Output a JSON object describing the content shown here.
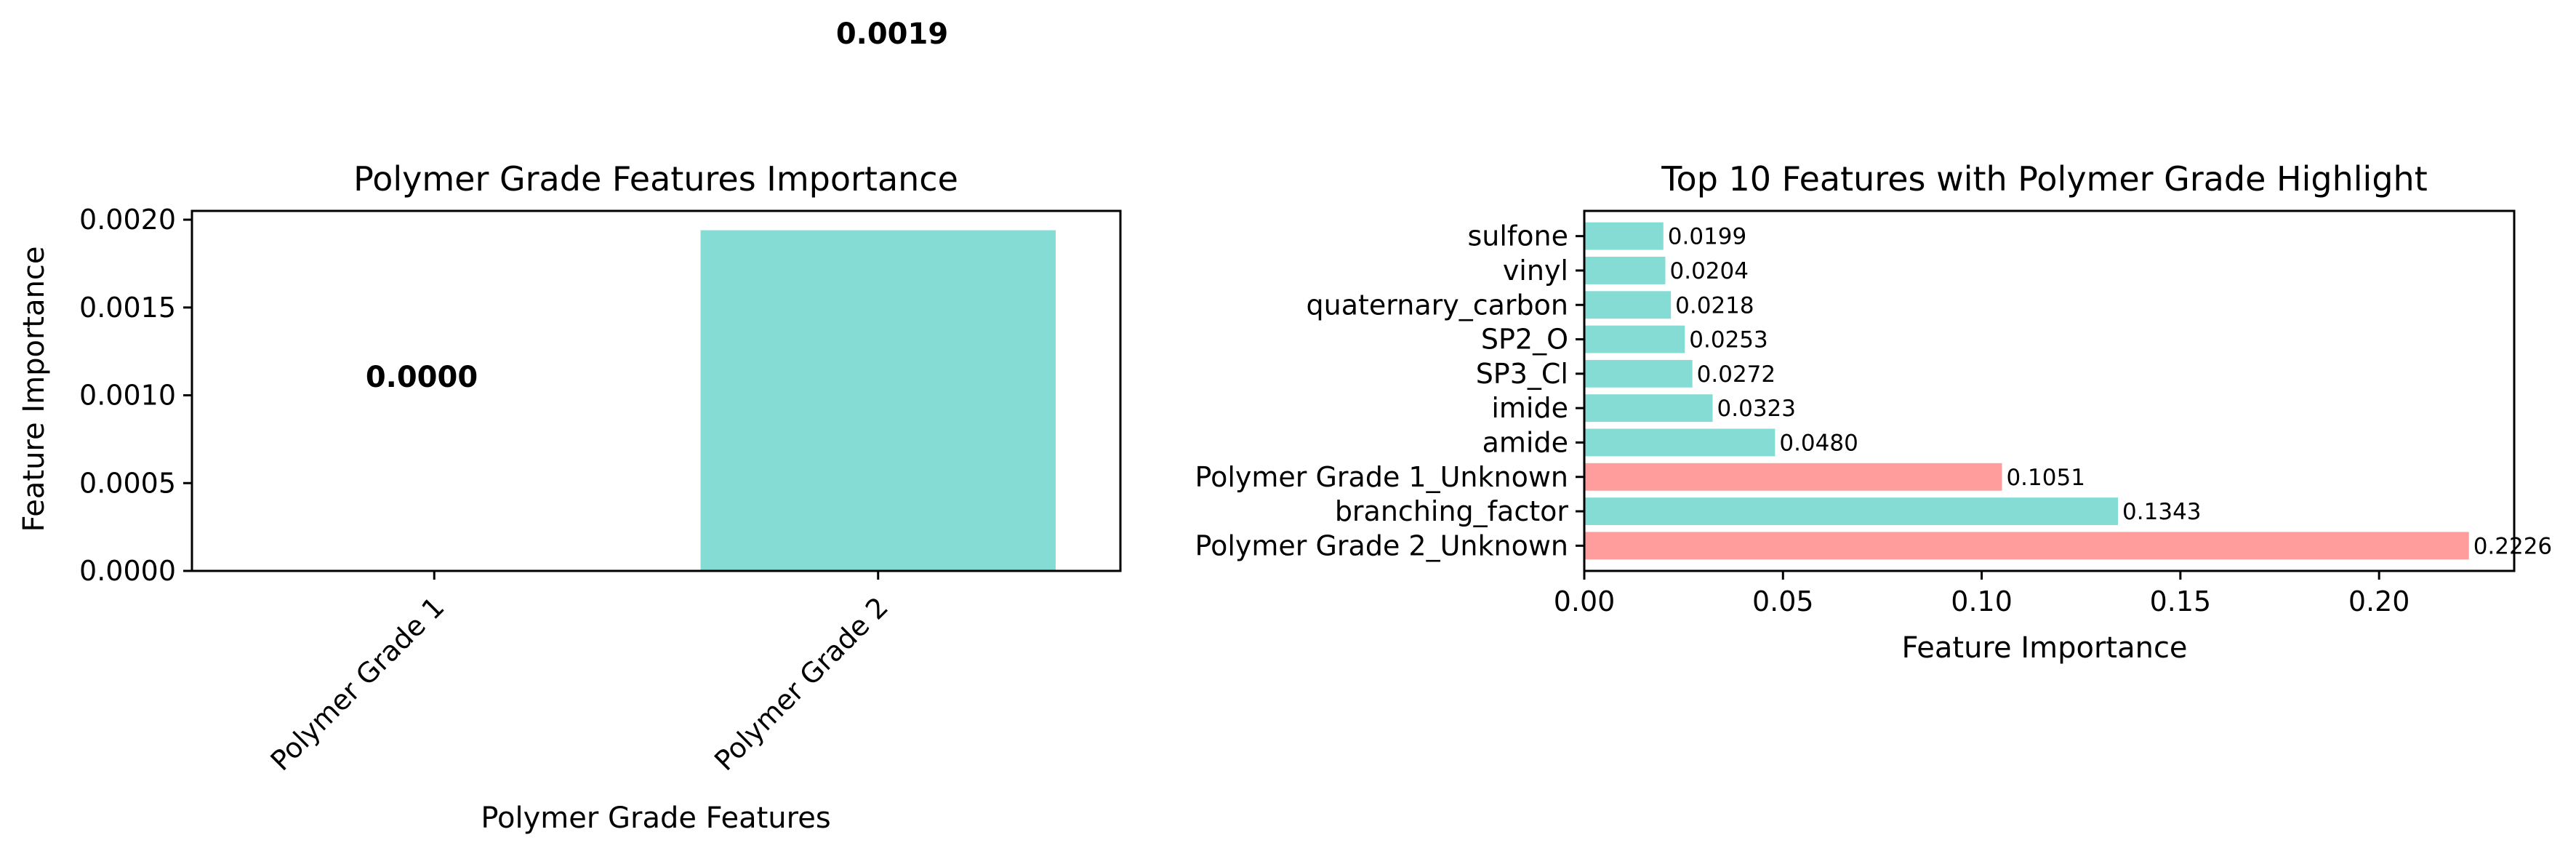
{
  "colors": {
    "normal": "#84dcd5",
    "highlight": "#ff9c9c",
    "axis": "#000000"
  },
  "chart_data": [
    {
      "type": "bar",
      "title": "Polymer Grade Features Importance",
      "xlabel": "Polymer Grade Features",
      "ylabel": "Feature Importance",
      "categories": [
        "Polymer Grade 1",
        "Polymer Grade 2"
      ],
      "values": [
        0.0,
        0.00194
      ],
      "value_labels": [
        "0.0000",
        "0.0019"
      ],
      "ylim": [
        0,
        0.00205
      ],
      "yticks": [
        0.0,
        0.0005,
        0.001,
        0.0015,
        0.002
      ],
      "ytick_labels": [
        "0.0000",
        "0.0005",
        "0.0010",
        "0.0015",
        "0.0020"
      ],
      "xtick_rotation": 45,
      "grid": false
    },
    {
      "type": "bar",
      "orientation": "horizontal",
      "title": "Top 10 Features with Polymer Grade Highlight",
      "xlabel": "Feature Importance",
      "ylabel": "",
      "categories": [
        "Polymer Grade 2_Unknown",
        "branching_factor",
        "Polymer Grade 1_Unknown",
        "amide",
        "imide",
        "SP3_Cl",
        "SP2_O",
        "quaternary_carbon",
        "vinyl",
        "sulfone"
      ],
      "values": [
        0.2226,
        0.1343,
        0.1051,
        0.048,
        0.0323,
        0.0272,
        0.0253,
        0.0218,
        0.0204,
        0.0199
      ],
      "value_labels": [
        "0.2226",
        "0.1343",
        "0.1051",
        "0.0480",
        "0.0323",
        "0.0272",
        "0.0253",
        "0.0218",
        "0.0204",
        "0.0199"
      ],
      "highlighted": [
        true,
        false,
        true,
        false,
        false,
        false,
        false,
        false,
        false,
        false
      ],
      "xlim": [
        0,
        0.234
      ],
      "xticks": [
        0.0,
        0.05,
        0.1,
        0.15,
        0.2
      ],
      "xtick_labels": [
        "0.00",
        "0.05",
        "0.10",
        "0.15",
        "0.20"
      ],
      "grid": false
    }
  ]
}
